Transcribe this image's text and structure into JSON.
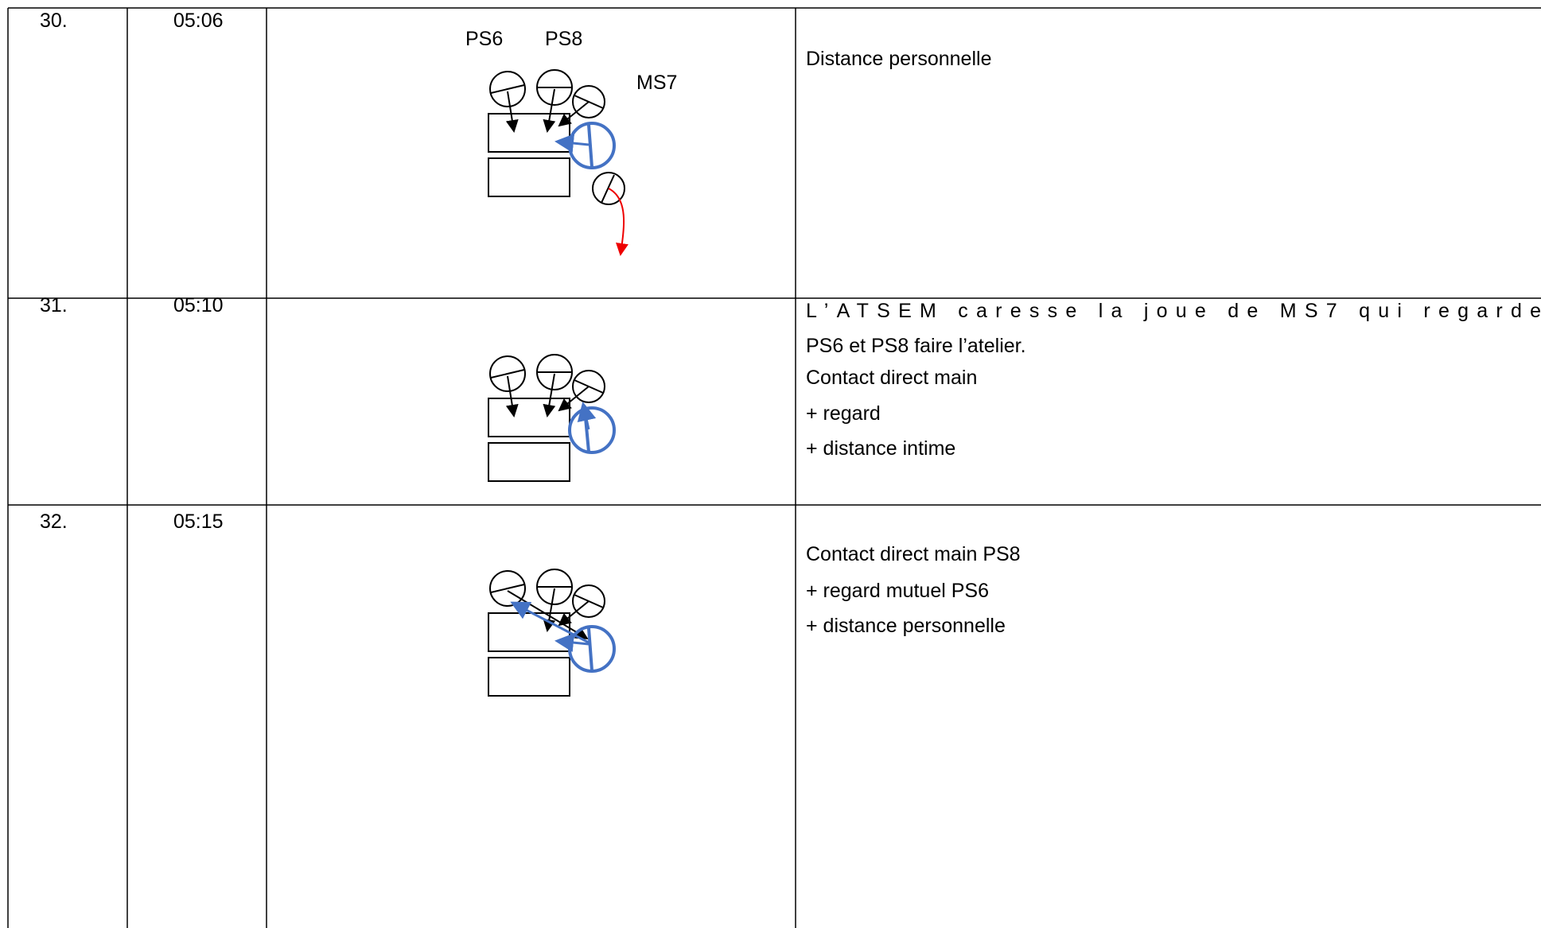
{
  "table": {
    "rows": [
      {
        "number": "30.",
        "time": "05:06",
        "diagram_labels": [
          "PS6",
          "PS8",
          "MS7"
        ],
        "description": [
          "Distance personnelle"
        ]
      },
      {
        "number": "31.",
        "time": "05:10",
        "description": [
          "L’ATSEM caresse la joue de MS7 qui regarde",
          "PS6 et PS8 faire l’atelier.",
          "Contact direct main",
          "+ regard",
          "+ distance intime"
        ]
      },
      {
        "number": "32.",
        "time": "05:15",
        "description": [
          "Contact direct main PS8",
          "+ regard mutuel PS6",
          "+ distance personnelle"
        ]
      }
    ]
  }
}
